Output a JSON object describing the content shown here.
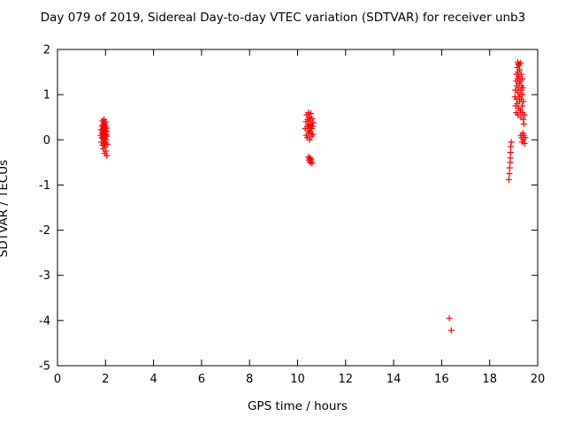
{
  "title": "Day 079 of 2019, Sidereal Day-to-day VTEC variation (SDTVAR) for receiver unb3",
  "chart_data": {
    "type": "scatter",
    "title": "Day 079 of 2019, Sidereal Day-to-day VTEC variation (SDTVAR) for receiver unb3",
    "xlabel": "GPS time / hours",
    "ylabel": "SDTVAR / TECUs",
    "xlim": [
      0,
      20
    ],
    "ylim": [
      -5,
      2
    ],
    "xticks": [
      0,
      2,
      4,
      6,
      8,
      10,
      12,
      14,
      16,
      18,
      20
    ],
    "yticks": [
      -5,
      -4,
      -3,
      -2,
      -1,
      0,
      1,
      2
    ],
    "grid": false,
    "legend": "none",
    "marker": "plus",
    "marker_color": "#ff0000",
    "frame_color": "#000000",
    "points": [
      [
        1.8,
        0.1
      ],
      [
        1.82,
        0.22
      ],
      [
        1.83,
        -0.05
      ],
      [
        1.85,
        0.3
      ],
      [
        1.85,
        0.05
      ],
      [
        1.86,
        0.15
      ],
      [
        1.87,
        0.42
      ],
      [
        1.88,
        -0.12
      ],
      [
        1.88,
        0.2
      ],
      [
        1.89,
        0.33
      ],
      [
        1.9,
        0.02
      ],
      [
        1.9,
        0.25
      ],
      [
        1.91,
        -0.2
      ],
      [
        1.91,
        0.12
      ],
      [
        1.92,
        0.38
      ],
      [
        1.92,
        0.08
      ],
      [
        1.93,
        0.18
      ],
      [
        1.93,
        -0.08
      ],
      [
        1.94,
        0.28
      ],
      [
        1.94,
        0.45
      ],
      [
        1.95,
        0.0
      ],
      [
        1.95,
        0.15
      ],
      [
        1.96,
        -0.3
      ],
      [
        1.96,
        0.22
      ],
      [
        1.97,
        0.35
      ],
      [
        1.97,
        0.05
      ],
      [
        1.98,
        -0.15
      ],
      [
        1.98,
        0.1
      ],
      [
        1.99,
        0.3
      ],
      [
        2.0,
        -0.05
      ],
      [
        2.0,
        0.2
      ],
      [
        2.01,
        0.4
      ],
      [
        2.02,
        0.0
      ],
      [
        2.02,
        -0.25
      ],
      [
        2.03,
        0.12
      ],
      [
        2.04,
        0.26
      ],
      [
        2.05,
        -0.35
      ],
      [
        2.05,
        0.08
      ],
      [
        2.06,
        0.18
      ],
      [
        2.07,
        -0.1
      ],
      [
        10.32,
        0.25
      ],
      [
        10.35,
        0.4
      ],
      [
        10.36,
        0.1
      ],
      [
        10.38,
        0.55
      ],
      [
        10.4,
        0.3
      ],
      [
        10.4,
        0.05
      ],
      [
        10.42,
        0.45
      ],
      [
        10.43,
        0.2
      ],
      [
        10.45,
        0.6
      ],
      [
        10.45,
        0.35
      ],
      [
        10.47,
        0.15
      ],
      [
        10.48,
        0.5
      ],
      [
        10.5,
        0.28
      ],
      [
        10.5,
        0.0
      ],
      [
        10.52,
        0.42
      ],
      [
        10.53,
        0.18
      ],
      [
        10.55,
        0.33
      ],
      [
        10.55,
        0.58
      ],
      [
        10.57,
        0.08
      ],
      [
        10.58,
        0.25
      ],
      [
        10.6,
        0.47
      ],
      [
        10.62,
        0.3
      ],
      [
        10.63,
        0.12
      ],
      [
        10.65,
        0.38
      ],
      [
        10.45,
        -0.38
      ],
      [
        10.48,
        -0.45
      ],
      [
        10.5,
        -0.42
      ],
      [
        10.52,
        -0.5
      ],
      [
        10.53,
        -0.4
      ],
      [
        10.55,
        -0.48
      ],
      [
        10.57,
        -0.44
      ],
      [
        10.6,
        -0.52
      ],
      [
        16.32,
        -3.95
      ],
      [
        16.4,
        -4.22
      ],
      [
        18.8,
        -0.88
      ],
      [
        18.82,
        -0.75
      ],
      [
        18.83,
        -0.62
      ],
      [
        18.85,
        -0.5
      ],
      [
        18.86,
        -0.4
      ],
      [
        18.87,
        -0.28
      ],
      [
        18.88,
        -0.15
      ],
      [
        18.9,
        -0.05
      ],
      [
        19.05,
        0.95
      ],
      [
        19.07,
        1.1
      ],
      [
        19.08,
        0.75
      ],
      [
        19.1,
        1.3
      ],
      [
        19.1,
        0.6
      ],
      [
        19.12,
        1.45
      ],
      [
        19.12,
        0.9
      ],
      [
        19.13,
        1.2
      ],
      [
        19.15,
        1.6
      ],
      [
        19.15,
        0.8
      ],
      [
        19.16,
        1.05
      ],
      [
        19.17,
        1.35
      ],
      [
        19.17,
        1.72
      ],
      [
        19.18,
        0.55
      ],
      [
        19.18,
        1.5
      ],
      [
        19.19,
        1.68
      ],
      [
        19.2,
        1.15
      ],
      [
        19.2,
        0.7
      ],
      [
        19.21,
        1.4
      ],
      [
        19.22,
        0.95
      ],
      [
        19.22,
        1.65
      ],
      [
        19.23,
        1.25
      ],
      [
        19.25,
        0.85
      ],
      [
        19.25,
        1.55
      ],
      [
        19.26,
        1.0
      ],
      [
        19.27,
        1.3
      ],
      [
        19.28,
        0.65
      ],
      [
        19.28,
        1.7
      ],
      [
        19.3,
        1.1
      ],
      [
        19.3,
        0.5
      ],
      [
        19.31,
        1.45
      ],
      [
        19.32,
        0.9
      ],
      [
        19.33,
        1.2
      ],
      [
        19.35,
        0.75
      ],
      [
        19.35,
        1.35
      ],
      [
        19.36,
        1.0
      ],
      [
        19.37,
        0.6
      ],
      [
        19.38,
        1.15
      ],
      [
        19.4,
        0.45
      ],
      [
        19.4,
        0.85
      ],
      [
        19.42,
        0.35
      ],
      [
        19.45,
        0.55
      ],
      [
        19.3,
        0.1
      ],
      [
        19.33,
        0.05
      ],
      [
        19.35,
        -0.05
      ],
      [
        19.38,
        0.15
      ],
      [
        19.4,
        0.0
      ],
      [
        19.42,
        0.1
      ],
      [
        19.45,
        -0.08
      ],
      [
        19.48,
        0.05
      ]
    ]
  }
}
